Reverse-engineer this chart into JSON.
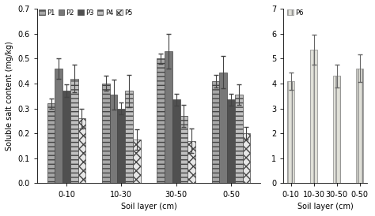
{
  "left_categories": [
    "0-10",
    "10-30",
    "30-50",
    "0-50"
  ],
  "right_categories": [
    "0-10",
    "10-30",
    "30-50",
    "0-50"
  ],
  "series": [
    "P1",
    "P2",
    "P3",
    "P4",
    "P5"
  ],
  "values": {
    "P1": [
      0.32,
      0.4,
      0.5,
      0.41
    ],
    "P2": [
      0.46,
      0.355,
      0.53,
      0.445
    ],
    "P3": [
      0.37,
      0.3,
      0.335,
      0.335
    ],
    "P4": [
      0.42,
      0.37,
      0.27,
      0.355
    ],
    "P5": [
      0.26,
      0.175,
      0.17,
      0.2
    ]
  },
  "errors": {
    "P1": [
      0.02,
      0.03,
      0.02,
      0.025
    ],
    "P2": [
      0.04,
      0.06,
      0.07,
      0.065
    ],
    "P3": [
      0.025,
      0.025,
      0.025,
      0.025
    ],
    "P4": [
      0.055,
      0.065,
      0.045,
      0.04
    ],
    "P5": [
      0.04,
      0.04,
      0.05,
      0.025
    ]
  },
  "right_values": {
    "P6": [
      4.1,
      5.35,
      4.3,
      4.6
    ]
  },
  "right_errors": {
    "P6": [
      0.35,
      0.6,
      0.45,
      0.55
    ]
  },
  "color_P1": "#a8a8a8",
  "color_P2": "#787878",
  "color_P3": "#505050",
  "color_P4": "#c0c0c0",
  "color_P5": "#e8e8e8",
  "color_P6": "#e0e0d8",
  "hatch_P1": "---",
  "hatch_P2": "",
  "hatch_P3": "",
  "hatch_P4": "---",
  "hatch_P5": "xxx",
  "hatch_P6": "|||",
  "ylabel_left": "Soluble salt content (mg/kg)",
  "xlabel": "Soil layer (cm)",
  "ylim_left": [
    0.0,
    0.7
  ],
  "ylim_right": [
    0.0,
    7.0
  ],
  "yticks_left": [
    0.0,
    0.1,
    0.2,
    0.3,
    0.4,
    0.5,
    0.6,
    0.7
  ],
  "yticks_right": [
    0.0,
    1.0,
    2.0,
    3.0,
    4.0,
    5.0,
    6.0,
    7.0
  ],
  "bar_width": 0.14,
  "figsize": [
    4.74,
    2.74
  ],
  "dpi": 100
}
